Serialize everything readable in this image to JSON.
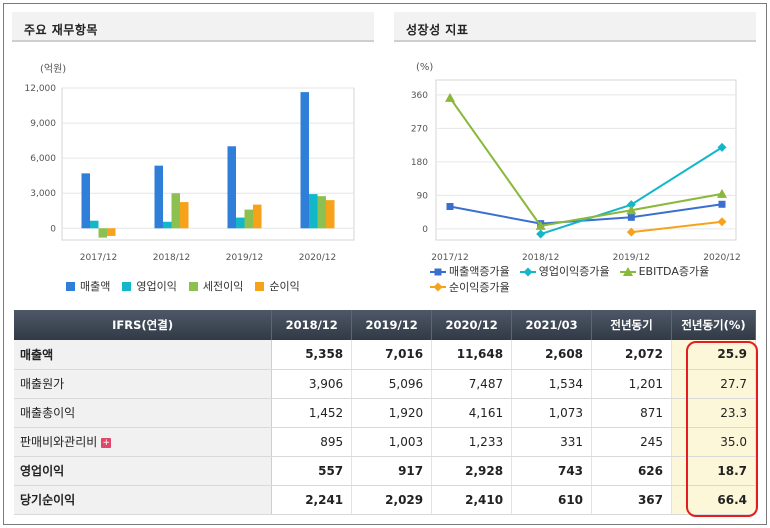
{
  "left_panel": {
    "title": "주요 재무항목"
  },
  "right_panel": {
    "title": "성장성 지표"
  },
  "chart_data": [
    {
      "type": "bar",
      "title": "주요 재무항목",
      "unit_label": "(억원)",
      "categories": [
        "2017/12",
        "2018/12",
        "2019/12",
        "2020/12"
      ],
      "ylim": [
        -1000,
        12000
      ],
      "yticks": [
        0,
        3000,
        6000,
        9000,
        12000
      ],
      "ytick_labels": [
        "0",
        "3,000",
        "6,000",
        "9,000",
        "12,000"
      ],
      "grid": true,
      "legend_position": "bottom",
      "series": [
        {
          "name": "매출액",
          "color": "#2f7ed8",
          "values": [
            4700,
            5358,
            7016,
            11648
          ]
        },
        {
          "name": "영업이익",
          "color": "#14b6c9",
          "values": [
            650,
            557,
            917,
            2928
          ]
        },
        {
          "name": "세전이익",
          "color": "#8cc152",
          "values": [
            -800,
            3000,
            1600,
            2750
          ]
        },
        {
          "name": "순이익",
          "color": "#f7a21b",
          "values": [
            -650,
            2241,
            2029,
            2410
          ]
        }
      ]
    },
    {
      "type": "line",
      "title": "성장성 지표",
      "unit_label": "(%)",
      "categories": [
        "2017/12",
        "2018/12",
        "2019/12",
        "2020/12"
      ],
      "ylim": [
        -30,
        400
      ],
      "yticks": [
        0,
        90,
        180,
        270,
        360
      ],
      "ytick_labels": [
        "0",
        "90",
        "180",
        "270",
        "360"
      ],
      "grid": true,
      "legend_position": "bottom",
      "series": [
        {
          "name": "매출액증가율",
          "color": "#3b6fcf",
          "marker": "square",
          "values": [
            60,
            14,
            31,
            66
          ]
        },
        {
          "name": "영업이익증가율",
          "color": "#14b6c9",
          "marker": "diamond",
          "values": [
            null,
            -14,
            65,
            219
          ]
        },
        {
          "name": "EBITDA증가율",
          "color": "#8ab83a",
          "marker": "triangle",
          "values": [
            352,
            8,
            50,
            94
          ]
        },
        {
          "name": "순이익증가율",
          "color": "#f7a21b",
          "marker": "diamond",
          "values": [
            null,
            null,
            -9,
            19
          ]
        }
      ]
    }
  ],
  "table": {
    "header": [
      "IFRS(연결)",
      "2018/12",
      "2019/12",
      "2020/12",
      "2021/03",
      "전년동기",
      "전년동기(%)"
    ],
    "rows": [
      {
        "label": "매출액",
        "bold": true,
        "plus": false,
        "values": [
          "5,358",
          "7,016",
          "11,648",
          "2,608",
          "2,072",
          "25.9"
        ]
      },
      {
        "label": "매출원가",
        "bold": false,
        "plus": false,
        "values": [
          "3,906",
          "5,096",
          "7,487",
          "1,534",
          "1,201",
          "27.7"
        ]
      },
      {
        "label": "매출총이익",
        "bold": false,
        "plus": false,
        "values": [
          "1,452",
          "1,920",
          "4,161",
          "1,073",
          "871",
          "23.3"
        ]
      },
      {
        "label": "판매비와관리비",
        "bold": false,
        "plus": true,
        "values": [
          "895",
          "1,003",
          "1,233",
          "331",
          "245",
          "35.0"
        ]
      },
      {
        "label": "영업이익",
        "bold": true,
        "plus": false,
        "values": [
          "557",
          "917",
          "2,928",
          "743",
          "626",
          "18.7"
        ]
      },
      {
        "label": "당기순이익",
        "bold": true,
        "plus": false,
        "values": [
          "2,241",
          "2,029",
          "2,410",
          "610",
          "367",
          "66.4"
        ]
      }
    ]
  },
  "plus_icon_symbol": "+",
  "highlight_color": "#e41e1e"
}
